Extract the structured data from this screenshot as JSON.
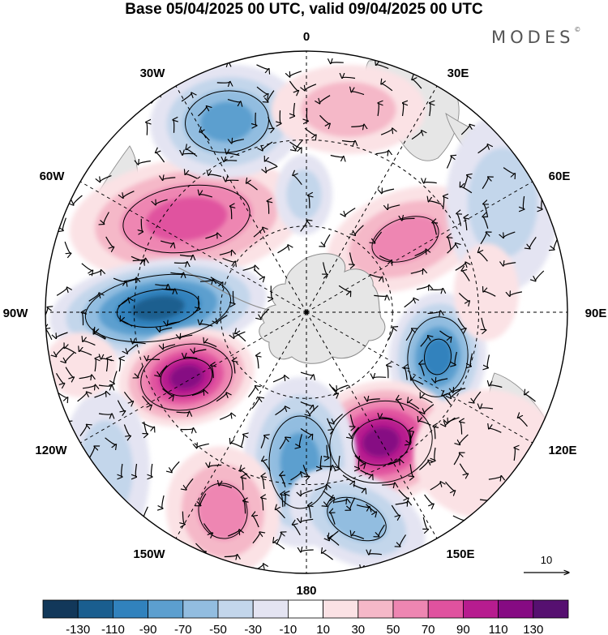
{
  "title": "Base 05/04/2025 00 UTC, valid 09/04/2025 00 UTC",
  "brand": "MODES",
  "brand_mark": "©",
  "map": {
    "projection": "south-polar-stereographic",
    "longitude_labels": {
      "lon_0": "0",
      "lon_30e": "30E",
      "lon_60e": "60E",
      "lon_90e": "90E",
      "lon_120e": "120E",
      "lon_150e": "150E",
      "lon_180": "180",
      "lon_150w": "150W",
      "lon_120w": "120W",
      "lon_90w": "90W",
      "lon_60w": "60W",
      "lon_30w": "30W"
    },
    "land_color": "#e6e6e6",
    "coast_color": "#8c8c8c",
    "vector_reference": "10"
  },
  "colorbar": {
    "colors": [
      "#12385a",
      "#1a5e8f",
      "#3182bd",
      "#5c9fcf",
      "#92bde0",
      "#c3d6eb",
      "#e4e4f2",
      "#ffffff",
      "#fbe2e5",
      "#f5b8c8",
      "#ee86b2",
      "#e0529f",
      "#b71c8f",
      "#860b83",
      "#561070"
    ],
    "ticks": [
      "-130",
      "-110",
      "-90",
      "-70",
      "-50",
      "-30",
      "-10",
      "10",
      "30",
      "50",
      "70",
      "90",
      "110",
      "130"
    ]
  }
}
